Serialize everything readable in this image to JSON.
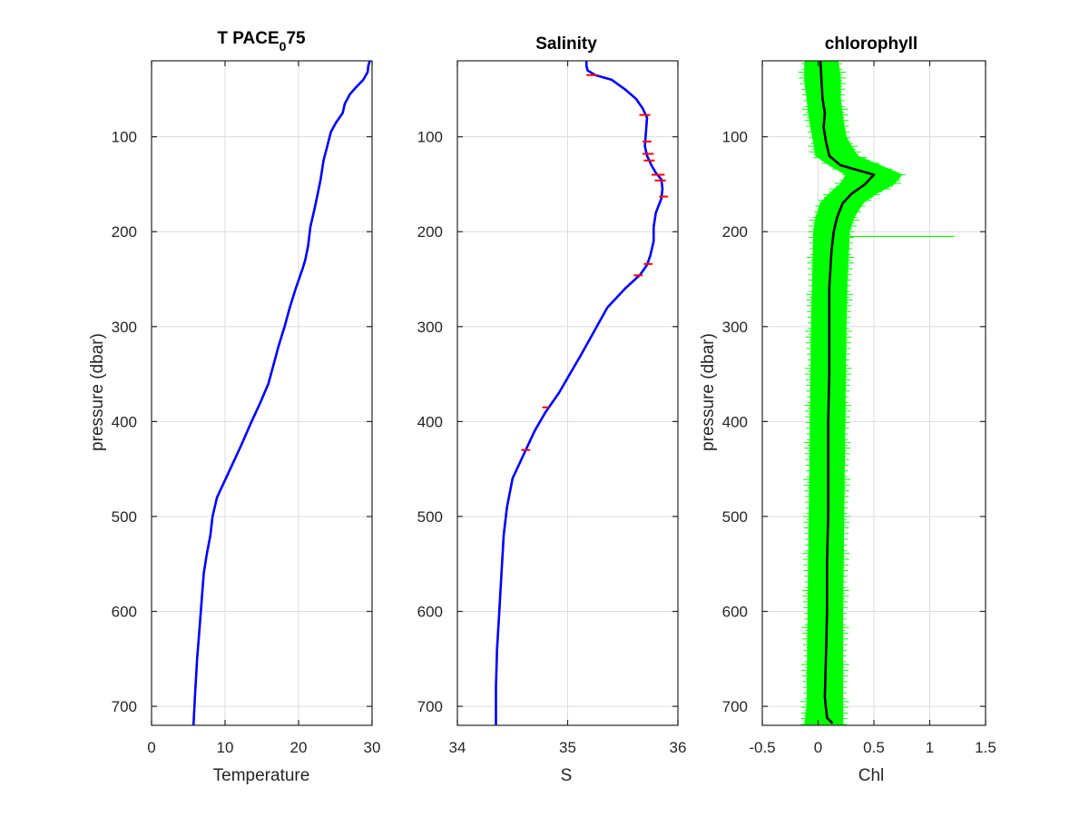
{
  "chart_data": [
    {
      "type": "line",
      "title": "T PACE",
      "title_subscript": "0",
      "title_suffix": "75",
      "xlabel": "Temperature",
      "ylabel": "pressure (dbar)",
      "xlim": [
        0,
        30
      ],
      "ylim": [
        20,
        720
      ],
      "y_reversed": true,
      "xticks": [
        "0",
        "10",
        "20",
        "30"
      ],
      "yticks": [
        "100",
        "200",
        "300",
        "400",
        "500",
        "600",
        "700"
      ],
      "grid": true,
      "series": [
        {
          "color": "#0000ff",
          "points": [
            [
              29.7,
              20
            ],
            [
              29.5,
              25
            ],
            [
              29.4,
              32
            ],
            [
              28.8,
              40
            ],
            [
              27.8,
              48
            ],
            [
              27.0,
              55
            ],
            [
              26.3,
              65
            ],
            [
              26.0,
              75
            ],
            [
              25.1,
              85
            ],
            [
              24.4,
              95
            ],
            [
              23.9,
              110
            ],
            [
              23.4,
              125
            ],
            [
              23.0,
              145
            ],
            [
              22.6,
              160
            ],
            [
              22.2,
              175
            ],
            [
              21.6,
              195
            ],
            [
              21.3,
              215
            ],
            [
              20.9,
              230
            ],
            [
              20.5,
              240
            ],
            [
              19.6,
              260
            ],
            [
              18.8,
              280
            ],
            [
              18.1,
              300
            ],
            [
              17.3,
              320
            ],
            [
              16.6,
              340
            ],
            [
              15.9,
              360
            ],
            [
              14.8,
              380
            ],
            [
              13.6,
              400
            ],
            [
              12.2,
              425
            ],
            [
              11.0,
              445
            ],
            [
              9.8,
              465
            ],
            [
              8.9,
              480
            ],
            [
              8.3,
              500
            ],
            [
              8.0,
              520
            ],
            [
              7.5,
              540
            ],
            [
              7.1,
              560
            ],
            [
              6.8,
              590
            ],
            [
              6.5,
              620
            ],
            [
              6.2,
              650
            ],
            [
              5.9,
              690
            ],
            [
              5.7,
              720
            ]
          ]
        }
      ]
    },
    {
      "type": "line",
      "title": "Salinity",
      "xlabel": "S",
      "ylabel": "",
      "xlim": [
        34,
        36
      ],
      "ylim": [
        20,
        720
      ],
      "y_reversed": true,
      "xticks": [
        "34",
        "35",
        "36"
      ],
      "yticks": [
        "100",
        "200",
        "300",
        "400",
        "500",
        "600",
        "700"
      ],
      "grid": true,
      "series": [
        {
          "color": "#0000ff",
          "points": [
            [
              35.17,
              20
            ],
            [
              35.17,
              25
            ],
            [
              35.18,
              30
            ],
            [
              35.25,
              35
            ],
            [
              35.4,
              40
            ],
            [
              35.52,
              50
            ],
            [
              35.62,
              60
            ],
            [
              35.68,
              70
            ],
            [
              35.72,
              80
            ],
            [
              35.71,
              95
            ],
            [
              35.7,
              110
            ],
            [
              35.72,
              120
            ],
            [
              35.76,
              130
            ],
            [
              35.8,
              138
            ],
            [
              35.85,
              145
            ],
            [
              35.86,
              155
            ],
            [
              35.85,
              165
            ],
            [
              35.8,
              180
            ],
            [
              35.78,
              195
            ],
            [
              35.78,
              210
            ],
            [
              35.75,
              225
            ],
            [
              35.72,
              235
            ],
            [
              35.66,
              245
            ],
            [
              35.52,
              260
            ],
            [
              35.36,
              280
            ],
            [
              35.24,
              305
            ],
            [
              35.12,
              330
            ],
            [
              35.02,
              350
            ],
            [
              34.92,
              370
            ],
            [
              34.8,
              390
            ],
            [
              34.7,
              410
            ],
            [
              34.6,
              435
            ],
            [
              34.5,
              460
            ],
            [
              34.45,
              490
            ],
            [
              34.42,
              520
            ],
            [
              34.4,
              560
            ],
            [
              34.38,
              600
            ],
            [
              34.36,
              640
            ],
            [
              34.35,
              680
            ],
            [
              34.35,
              720
            ]
          ]
        }
      ],
      "error_color": "#ff0000",
      "error_bars": [
        [
          35.22,
          35,
          0.05
        ],
        [
          35.7,
          77,
          0.05
        ],
        [
          35.72,
          105,
          0.04
        ],
        [
          35.73,
          118,
          0.05
        ],
        [
          35.74,
          125,
          0.05
        ],
        [
          35.82,
          140,
          0.06
        ],
        [
          35.84,
          146,
          0.05
        ],
        [
          35.87,
          163,
          0.04
        ],
        [
          35.73,
          234,
          0.04
        ],
        [
          35.64,
          246,
          0.04
        ],
        [
          34.8,
          385,
          0.03
        ],
        [
          34.62,
          430,
          0.04
        ]
      ]
    },
    {
      "type": "line",
      "title": "chlorophyll",
      "xlabel": "Chl",
      "ylabel": "pressure (dbar)",
      "xlim": [
        -0.5,
        1.5
      ],
      "ylim": [
        20,
        720
      ],
      "y_reversed": true,
      "xticks": [
        "-0.5",
        "0",
        "0.5",
        "1",
        "1.5"
      ],
      "yticks": [
        "100",
        "200",
        "300",
        "400",
        "500",
        "600",
        "700"
      ],
      "grid": true,
      "series": [
        {
          "color": "#000000",
          "points": [
            [
              0.02,
              20
            ],
            [
              0.03,
              40
            ],
            [
              0.04,
              60
            ],
            [
              0.06,
              75
            ],
            [
              0.05,
              90
            ],
            [
              0.07,
              105
            ],
            [
              0.1,
              120
            ],
            [
              0.2,
              130
            ],
            [
              0.35,
              135
            ],
            [
              0.5,
              140
            ],
            [
              0.42,
              150
            ],
            [
              0.3,
              160
            ],
            [
              0.22,
              170
            ],
            [
              0.17,
              185
            ],
            [
              0.14,
              200
            ],
            [
              0.12,
              220
            ],
            [
              0.11,
              240
            ],
            [
              0.1,
              260
            ],
            [
              0.1,
              300
            ],
            [
              0.1,
              350
            ],
            [
              0.09,
              400
            ],
            [
              0.09,
              450
            ],
            [
              0.09,
              500
            ],
            [
              0.08,
              550
            ],
            [
              0.08,
              600
            ],
            [
              0.07,
              650
            ],
            [
              0.06,
              690
            ],
            [
              0.08,
              712
            ],
            [
              0.13,
              718
            ]
          ]
        }
      ],
      "band_color": "#00ff00",
      "band": [
        [
          20,
          -0.12,
          0.18
        ],
        [
          40,
          -0.12,
          0.2
        ],
        [
          60,
          -0.1,
          0.2
        ],
        [
          80,
          -0.08,
          0.22
        ],
        [
          100,
          -0.05,
          0.25
        ],
        [
          120,
          -0.02,
          0.35
        ],
        [
          130,
          0.1,
          0.55
        ],
        [
          140,
          0.25,
          0.75
        ],
        [
          150,
          0.2,
          0.68
        ],
        [
          160,
          0.1,
          0.52
        ],
        [
          170,
          0.02,
          0.4
        ],
        [
          185,
          -0.02,
          0.32
        ],
        [
          200,
          -0.04,
          0.28
        ],
        [
          250,
          -0.05,
          0.26
        ],
        [
          300,
          -0.06,
          0.25
        ],
        [
          400,
          -0.07,
          0.24
        ],
        [
          500,
          -0.08,
          0.23
        ],
        [
          600,
          -0.09,
          0.22
        ],
        [
          700,
          -0.1,
          0.22
        ],
        [
          720,
          -0.12,
          0.22
        ]
      ],
      "spike": [
        205,
        1.22
      ]
    }
  ]
}
